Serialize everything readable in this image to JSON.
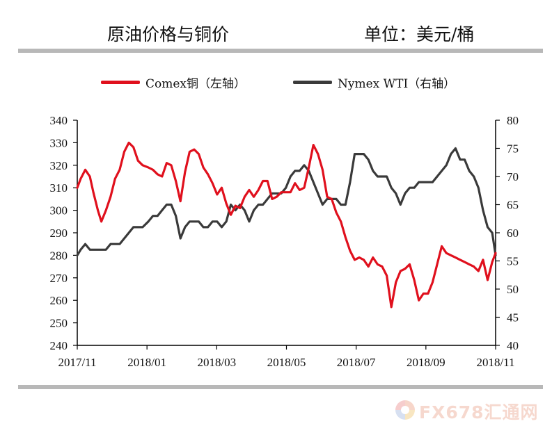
{
  "header": {
    "title": "原油价格与铜价",
    "unit": "单位：美元/桶"
  },
  "legend": {
    "copper": "Comex铜（左轴）",
    "wti": "Nymex WTI（右轴）"
  },
  "colors": {
    "copper": "#e0101d",
    "wti": "#3a3a3a",
    "rule": "#b8b8b8"
  },
  "watermark": {
    "text": "FX678汇通网",
    "icon": "fx678-logo-icon"
  },
  "chart_data": {
    "type": "line",
    "x_ticks": [
      "2017/11",
      "2018/01",
      "2018/03",
      "2018/05",
      "2018/07",
      "2018/09",
      "2018/11"
    ],
    "left_axis": {
      "ylim": [
        240,
        340
      ],
      "ticks": [
        240,
        250,
        260,
        270,
        280,
        290,
        300,
        310,
        320,
        330,
        340
      ]
    },
    "right_axis": {
      "ylim": [
        40,
        80
      ],
      "ticks": [
        40,
        45,
        50,
        55,
        60,
        65,
        70,
        75,
        80
      ]
    },
    "series": [
      {
        "name": "Comex铜（左轴）",
        "axis": "left",
        "color": "#e0101d",
        "x": [
          "2017-11-01",
          "2017-11-04",
          "2017-11-08",
          "2017-11-12",
          "2017-11-15",
          "2017-11-19",
          "2017-11-22",
          "2017-11-26",
          "2017-11-30",
          "2017-12-04",
          "2017-12-08",
          "2017-12-12",
          "2017-12-16",
          "2017-12-20",
          "2017-12-24",
          "2017-12-28",
          "2018-01-02",
          "2018-01-06",
          "2018-01-10",
          "2018-01-14",
          "2018-01-18",
          "2018-01-22",
          "2018-01-26",
          "2018-01-30",
          "2018-02-03",
          "2018-02-07",
          "2018-02-11",
          "2018-02-15",
          "2018-02-19",
          "2018-02-23",
          "2018-02-27",
          "2018-03-03",
          "2018-03-07",
          "2018-03-11",
          "2018-03-15",
          "2018-03-19",
          "2018-03-23",
          "2018-03-27",
          "2018-03-31",
          "2018-04-04",
          "2018-04-08",
          "2018-04-12",
          "2018-04-16",
          "2018-04-20",
          "2018-04-24",
          "2018-04-28",
          "2018-05-02",
          "2018-05-06",
          "2018-05-10",
          "2018-05-14",
          "2018-05-18",
          "2018-05-22",
          "2018-05-26",
          "2018-05-30",
          "2018-06-03",
          "2018-06-07",
          "2018-06-11",
          "2018-06-15",
          "2018-06-19",
          "2018-06-23",
          "2018-06-27",
          "2018-07-01",
          "2018-07-05",
          "2018-07-09",
          "2018-07-13",
          "2018-07-17",
          "2018-07-21",
          "2018-07-25",
          "2018-07-29",
          "2018-08-02",
          "2018-08-06",
          "2018-08-10",
          "2018-08-14",
          "2018-08-18",
          "2018-08-22",
          "2018-08-26",
          "2018-08-30",
          "2018-09-03",
          "2018-09-07",
          "2018-09-11",
          "2018-09-15",
          "2018-09-19",
          "2018-09-23",
          "2018-09-27",
          "2018-10-01",
          "2018-10-05",
          "2018-10-09",
          "2018-10-13",
          "2018-10-17",
          "2018-10-21",
          "2018-10-25",
          "2018-10-29",
          "2018-11-01"
        ],
        "y": [
          310,
          314,
          318,
          315,
          308,
          300,
          295,
          300,
          306,
          314,
          318,
          326,
          330,
          328,
          322,
          320,
          319,
          318,
          316,
          315,
          321,
          320,
          313,
          304,
          317,
          326,
          327,
          325,
          319,
          316,
          312,
          307,
          310,
          303,
          298,
          302,
          301,
          306,
          309,
          306,
          309,
          313,
          313,
          305,
          306,
          308,
          308,
          308,
          312,
          309,
          310,
          319,
          329,
          325,
          318,
          306,
          305,
          299,
          295,
          288,
          282,
          278,
          279,
          278,
          275,
          279,
          276,
          275,
          271,
          257,
          268,
          273,
          274,
          276,
          269,
          260,
          263,
          263,
          268,
          276,
          284,
          281,
          280,
          279,
          278,
          277,
          276,
          275,
          273,
          278,
          269,
          277,
          281
        ]
      },
      {
        "name": "Nymex WTI（右轴）",
        "axis": "right",
        "color": "#3a3a3a",
        "x": [
          "2017-11-01",
          "2017-11-04",
          "2017-11-08",
          "2017-11-12",
          "2017-11-15",
          "2017-11-19",
          "2017-11-22",
          "2017-11-26",
          "2017-11-30",
          "2017-12-04",
          "2017-12-08",
          "2017-12-12",
          "2017-12-16",
          "2017-12-20",
          "2017-12-24",
          "2017-12-28",
          "2018-01-02",
          "2018-01-06",
          "2018-01-10",
          "2018-01-14",
          "2018-01-18",
          "2018-01-22",
          "2018-01-26",
          "2018-01-30",
          "2018-02-03",
          "2018-02-07",
          "2018-02-11",
          "2018-02-15",
          "2018-02-19",
          "2018-02-23",
          "2018-02-27",
          "2018-03-03",
          "2018-03-07",
          "2018-03-11",
          "2018-03-15",
          "2018-03-19",
          "2018-03-23",
          "2018-03-27",
          "2018-03-31",
          "2018-04-04",
          "2018-04-08",
          "2018-04-12",
          "2018-04-16",
          "2018-04-20",
          "2018-04-24",
          "2018-04-28",
          "2018-05-02",
          "2018-05-06",
          "2018-05-10",
          "2018-05-14",
          "2018-05-18",
          "2018-05-22",
          "2018-05-26",
          "2018-05-30",
          "2018-06-03",
          "2018-06-07",
          "2018-06-11",
          "2018-06-15",
          "2018-06-19",
          "2018-06-23",
          "2018-06-27",
          "2018-07-01",
          "2018-07-05",
          "2018-07-09",
          "2018-07-13",
          "2018-07-17",
          "2018-07-21",
          "2018-07-25",
          "2018-07-29",
          "2018-08-02",
          "2018-08-06",
          "2018-08-10",
          "2018-08-14",
          "2018-08-18",
          "2018-08-22",
          "2018-08-26",
          "2018-08-30",
          "2018-09-03",
          "2018-09-07",
          "2018-09-11",
          "2018-09-15",
          "2018-09-19",
          "2018-09-23",
          "2018-09-27",
          "2018-10-01",
          "2018-10-05",
          "2018-10-09",
          "2018-10-13",
          "2018-10-17",
          "2018-10-21",
          "2018-10-25",
          "2018-10-29",
          "2018-11-01"
        ],
        "y": [
          56,
          57,
          58,
          57,
          57,
          57,
          57,
          57,
          58,
          58,
          58,
          59,
          60,
          61,
          61,
          61,
          62,
          63,
          63,
          64,
          65,
          65,
          63,
          59,
          61,
          62,
          62,
          62,
          61,
          61,
          62,
          62,
          61,
          62,
          65,
          64,
          65,
          64,
          62,
          64,
          65,
          65,
          66,
          67,
          67,
          67,
          68,
          70,
          71,
          71,
          72,
          71,
          69,
          67,
          65,
          66,
          66,
          66,
          65,
          65,
          69,
          74,
          74,
          74,
          73,
          71,
          70,
          70,
          70,
          68,
          67,
          65,
          67,
          68,
          68,
          69,
          69,
          69,
          69,
          70,
          71,
          72,
          74,
          75,
          73,
          73,
          71,
          70,
          68,
          64,
          61,
          60,
          56
        ]
      }
    ]
  }
}
